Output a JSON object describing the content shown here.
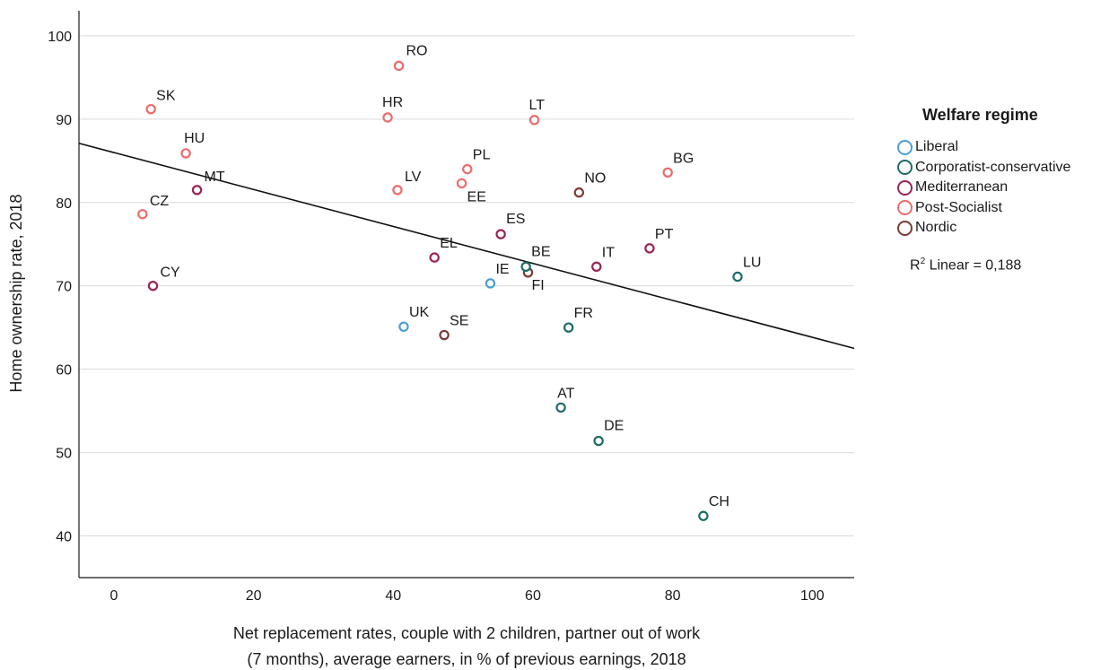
{
  "chart_data": {
    "type": "scatter",
    "xlabel_lines": [
      "Net replacement rates, couple with 2 children, partner out of work",
      "(7 months), average earners, in % of previous earnings, 2018"
    ],
    "ylabel": "Home ownership rate, 2018",
    "xlim": [
      -5,
      106
    ],
    "ylim": [
      35,
      103
    ],
    "xticks": [
      0,
      20,
      40,
      60,
      80,
      100
    ],
    "yticks": [
      40,
      50,
      60,
      70,
      80,
      90,
      100
    ],
    "grid": "horizontal",
    "legend_title": "Welfare regime",
    "legend_position": "right",
    "regimes": [
      {
        "name": "Liberal",
        "color": "#4a9fd5"
      },
      {
        "name": "Corporatist-conservative",
        "color": "#1e6b68"
      },
      {
        "name": "Mediterranean",
        "color": "#9b2457"
      },
      {
        "name": "Post-Socialist",
        "color": "#ef6b6b"
      },
      {
        "name": "Nordic",
        "color": "#7b3b35"
      }
    ],
    "fit_line": {
      "label_prefix": "R",
      "label_sup": "2",
      "label_suffix": " Linear = 0,188",
      "y_at_x_min": 87.1,
      "y_at_x_max": 62.5
    },
    "points": [
      {
        "label": "RO",
        "x": 40.8,
        "y": 96.4,
        "regime": 3
      },
      {
        "label": "SK",
        "x": 5.3,
        "y": 91.2,
        "regime": 3
      },
      {
        "label": "HR",
        "x": 39.2,
        "y": 90.2,
        "regime": 3
      },
      {
        "label": "LT",
        "x": 60.2,
        "y": 89.9,
        "regime": 3
      },
      {
        "label": "HU",
        "x": 10.3,
        "y": 85.9,
        "regime": 3
      },
      {
        "label": "PL",
        "x": 50.6,
        "y": 84.0,
        "regime": 3
      },
      {
        "label": "BG",
        "x": 79.3,
        "y": 83.6,
        "regime": 3
      },
      {
        "label": "EE",
        "x": 49.8,
        "y": 82.3,
        "regime": 3
      },
      {
        "label": "LV",
        "x": 40.6,
        "y": 81.5,
        "regime": 3
      },
      {
        "label": "CZ",
        "x": 4.1,
        "y": 78.6,
        "regime": 3
      },
      {
        "label": "MT",
        "x": 11.9,
        "y": 81.5,
        "regime": 2
      },
      {
        "label": "ES",
        "x": 55.4,
        "y": 76.2,
        "regime": 2
      },
      {
        "label": "EL",
        "x": 45.9,
        "y": 73.4,
        "regime": 2
      },
      {
        "label": "PT",
        "x": 76.7,
        "y": 74.5,
        "regime": 2
      },
      {
        "label": "IT",
        "x": 69.1,
        "y": 72.3,
        "regime": 2
      },
      {
        "label": "CY",
        "x": 5.6,
        "y": 70.0,
        "regime": 2
      },
      {
        "label": "NO",
        "x": 66.6,
        "y": 81.2,
        "regime": 4
      },
      {
        "label": "FI",
        "x": 59.3,
        "y": 71.6,
        "regime": 4
      },
      {
        "label": "SE",
        "x": 47.3,
        "y": 64.1,
        "regime": 4
      },
      {
        "label": "BE",
        "x": 59.0,
        "y": 72.3,
        "regime": 1
      },
      {
        "label": "LU",
        "x": 89.3,
        "y": 71.1,
        "regime": 1
      },
      {
        "label": "FR",
        "x": 65.1,
        "y": 65.0,
        "regime": 1
      },
      {
        "label": "AT",
        "x": 64.0,
        "y": 55.4,
        "regime": 1
      },
      {
        "label": "DE",
        "x": 69.4,
        "y": 51.4,
        "regime": 1
      },
      {
        "label": "CH",
        "x": 84.4,
        "y": 42.4,
        "regime": 1
      },
      {
        "label": "IE",
        "x": 53.9,
        "y": 70.3,
        "regime": 0
      },
      {
        "label": "UK",
        "x": 41.5,
        "y": 65.1,
        "regime": 0
      }
    ]
  }
}
